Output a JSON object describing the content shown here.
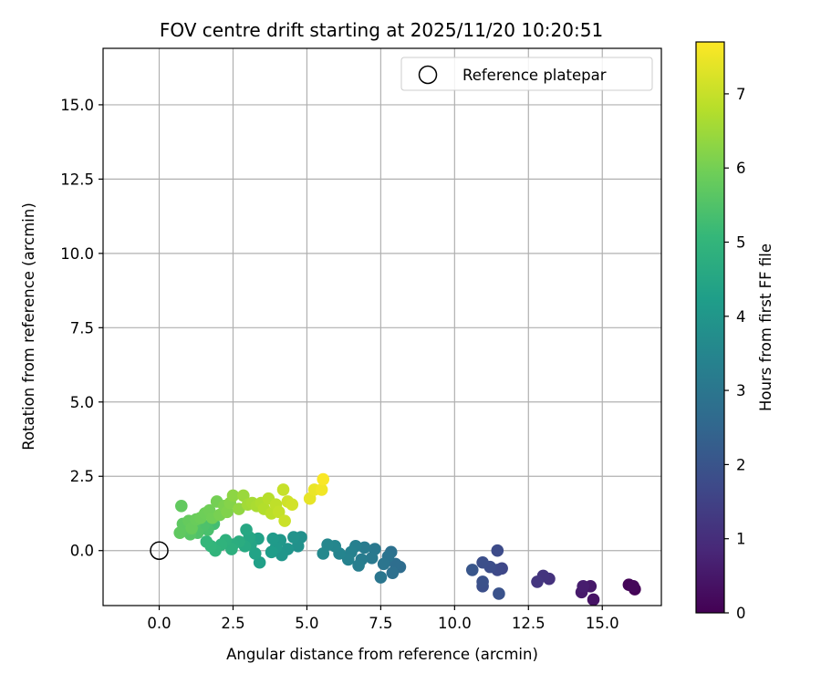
{
  "chart_data": {
    "type": "scatter",
    "title": "FOV centre drift starting at 2025/11/20 10:20:51",
    "xlabel": "Angular distance from reference (arcmin)",
    "ylabel": "Rotation from reference (arcmin)",
    "xlim": [
      -1.9,
      17.0
    ],
    "ylim": [
      -1.85,
      16.9
    ],
    "x_ticks": [
      0.0,
      2.5,
      5.0,
      7.5,
      10.0,
      12.5,
      15.0
    ],
    "x_tick_labels": [
      "0.0",
      "2.5",
      "5.0",
      "7.5",
      "10.0",
      "12.5",
      "15.0"
    ],
    "y_ticks": [
      0.0,
      2.5,
      5.0,
      7.5,
      10.0,
      12.5,
      15.0
    ],
    "y_tick_labels": [
      "0.0",
      "2.5",
      "5.0",
      "7.5",
      "10.0",
      "12.5",
      "15.0"
    ],
    "grid": true,
    "legend": {
      "location": "upper-right",
      "entries": [
        "Reference platepar"
      ]
    },
    "colorbar": {
      "label": "Hours from first FF file",
      "range": [
        0,
        7.7
      ],
      "ticks": [
        0,
        1,
        2,
        3,
        4,
        5,
        6,
        7
      ],
      "tick_labels": [
        "0",
        "1",
        "2",
        "3",
        "4",
        "5",
        "6",
        "7"
      ],
      "colormap": "viridis"
    },
    "reference_point": {
      "x": 0.0,
      "y": 0.0,
      "label": "Reference platepar"
    },
    "series": [
      {
        "name": "FOV centre",
        "points": [
          {
            "x": 16.1,
            "y": -1.3,
            "t": 0.05
          },
          {
            "x": 15.9,
            "y": -1.15,
            "t": 0.1
          },
          {
            "x": 16.05,
            "y": -1.2,
            "t": 0.15
          },
          {
            "x": 14.7,
            "y": -1.65,
            "t": 0.4
          },
          {
            "x": 14.6,
            "y": -1.2,
            "t": 0.5
          },
          {
            "x": 14.3,
            "y": -1.4,
            "t": 0.55
          },
          {
            "x": 14.35,
            "y": -1.2,
            "t": 0.6
          },
          {
            "x": 13.2,
            "y": -0.95,
            "t": 1.1
          },
          {
            "x": 13.0,
            "y": -0.85,
            "t": 1.15
          },
          {
            "x": 12.8,
            "y": -1.05,
            "t": 1.2
          },
          {
            "x": 11.6,
            "y": -0.6,
            "t": 1.65
          },
          {
            "x": 11.45,
            "y": -0.65,
            "t": 1.7
          },
          {
            "x": 11.45,
            "y": 0.0,
            "t": 1.75
          },
          {
            "x": 11.2,
            "y": -0.55,
            "t": 1.8
          },
          {
            "x": 10.95,
            "y": -0.4,
            "t": 1.85
          },
          {
            "x": 10.95,
            "y": -1.2,
            "t": 1.85
          },
          {
            "x": 10.95,
            "y": -1.05,
            "t": 1.9
          },
          {
            "x": 11.5,
            "y": -1.45,
            "t": 1.95
          },
          {
            "x": 10.6,
            "y": -0.65,
            "t": 2.05
          },
          {
            "x": 8.15,
            "y": -0.55,
            "t": 2.7
          },
          {
            "x": 8.0,
            "y": -0.45,
            "t": 2.75
          },
          {
            "x": 7.9,
            "y": -0.75,
            "t": 2.8
          },
          {
            "x": 7.85,
            "y": -0.05,
            "t": 2.85
          },
          {
            "x": 7.75,
            "y": -0.2,
            "t": 2.9
          },
          {
            "x": 7.6,
            "y": -0.45,
            "t": 2.95
          },
          {
            "x": 7.5,
            "y": -0.9,
            "t": 3.0
          },
          {
            "x": 7.3,
            "y": 0.05,
            "t": 3.05
          },
          {
            "x": 7.2,
            "y": -0.25,
            "t": 3.1
          },
          {
            "x": 6.95,
            "y": 0.1,
            "t": 3.15
          },
          {
            "x": 6.85,
            "y": -0.3,
            "t": 3.2
          },
          {
            "x": 6.75,
            "y": -0.5,
            "t": 3.25
          },
          {
            "x": 6.65,
            "y": 0.15,
            "t": 3.3
          },
          {
            "x": 6.5,
            "y": -0.05,
            "t": 3.35
          },
          {
            "x": 6.4,
            "y": -0.3,
            "t": 3.4
          },
          {
            "x": 6.1,
            "y": -0.1,
            "t": 3.45
          },
          {
            "x": 5.95,
            "y": 0.15,
            "t": 3.5
          },
          {
            "x": 5.7,
            "y": 0.2,
            "t": 3.55
          },
          {
            "x": 5.55,
            "y": -0.1,
            "t": 3.6
          },
          {
            "x": 4.8,
            "y": 0.45,
            "t": 3.8
          },
          {
            "x": 4.7,
            "y": 0.15,
            "t": 3.85
          },
          {
            "x": 4.55,
            "y": 0.45,
            "t": 3.9
          },
          {
            "x": 4.35,
            "y": 0.05,
            "t": 3.95
          },
          {
            "x": 4.15,
            "y": -0.15,
            "t": 4.0
          },
          {
            "x": 4.1,
            "y": 0.35,
            "t": 4.05
          },
          {
            "x": 3.95,
            "y": 0.1,
            "t": 4.1
          },
          {
            "x": 3.85,
            "y": 0.4,
            "t": 4.15
          },
          {
            "x": 3.8,
            "y": -0.05,
            "t": 4.2
          },
          {
            "x": 3.4,
            "y": -0.4,
            "t": 4.3
          },
          {
            "x": 3.35,
            "y": 0.4,
            "t": 4.35
          },
          {
            "x": 3.25,
            "y": -0.1,
            "t": 4.4
          },
          {
            "x": 3.1,
            "y": 0.2,
            "t": 4.45
          },
          {
            "x": 3.05,
            "y": 0.45,
            "t": 4.5
          },
          {
            "x": 2.95,
            "y": 0.7,
            "t": 4.55
          },
          {
            "x": 2.9,
            "y": 0.15,
            "t": 4.6
          },
          {
            "x": 2.7,
            "y": 0.3,
            "t": 4.7
          },
          {
            "x": 2.5,
            "y": 0.2,
            "t": 4.75
          },
          {
            "x": 2.45,
            "y": 0.05,
            "t": 4.8
          },
          {
            "x": 2.25,
            "y": 0.35,
            "t": 4.85
          },
          {
            "x": 2.1,
            "y": 0.2,
            "t": 4.9
          },
          {
            "x": 1.9,
            "y": 0.0,
            "t": 4.95
          },
          {
            "x": 1.75,
            "y": 0.15,
            "t": 5.0
          },
          {
            "x": 1.6,
            "y": 0.3,
            "t": 5.05
          },
          {
            "x": 1.85,
            "y": 0.9,
            "t": 5.3
          },
          {
            "x": 1.65,
            "y": 0.7,
            "t": 5.4
          },
          {
            "x": 1.5,
            "y": 0.85,
            "t": 5.45
          },
          {
            "x": 1.3,
            "y": 0.6,
            "t": 5.5
          },
          {
            "x": 1.2,
            "y": 0.9,
            "t": 5.55
          },
          {
            "x": 1.05,
            "y": 0.55,
            "t": 5.6
          },
          {
            "x": 0.9,
            "y": 0.7,
            "t": 5.65
          },
          {
            "x": 0.8,
            "y": 0.9,
            "t": 5.7
          },
          {
            "x": 0.7,
            "y": 0.6,
            "t": 5.72
          },
          {
            "x": 0.75,
            "y": 1.5,
            "t": 5.75
          },
          {
            "x": 1.0,
            "y": 1.0,
            "t": 5.8
          },
          {
            "x": 1.1,
            "y": 0.75,
            "t": 5.82
          },
          {
            "x": 1.25,
            "y": 1.05,
            "t": 5.85
          },
          {
            "x": 1.4,
            "y": 1.1,
            "t": 5.9
          },
          {
            "x": 1.55,
            "y": 1.25,
            "t": 5.92
          },
          {
            "x": 1.7,
            "y": 1.35,
            "t": 5.95
          },
          {
            "x": 1.8,
            "y": 1.1,
            "t": 5.97
          },
          {
            "x": 1.95,
            "y": 1.65,
            "t": 6.0
          },
          {
            "x": 2.05,
            "y": 1.2,
            "t": 6.05
          },
          {
            "x": 2.2,
            "y": 1.5,
            "t": 6.1
          },
          {
            "x": 2.3,
            "y": 1.3,
            "t": 6.15
          },
          {
            "x": 2.4,
            "y": 1.6,
            "t": 6.2
          },
          {
            "x": 2.5,
            "y": 1.85,
            "t": 6.3
          },
          {
            "x": 2.7,
            "y": 1.4,
            "t": 6.35
          },
          {
            "x": 2.85,
            "y": 1.85,
            "t": 6.45
          },
          {
            "x": 3.0,
            "y": 1.55,
            "t": 6.55
          },
          {
            "x": 3.15,
            "y": 1.6,
            "t": 6.6
          },
          {
            "x": 3.3,
            "y": 1.5,
            "t": 6.65
          },
          {
            "x": 3.45,
            "y": 1.6,
            "t": 6.7
          },
          {
            "x": 3.55,
            "y": 1.4,
            "t": 6.75
          },
          {
            "x": 3.7,
            "y": 1.75,
            "t": 6.8
          },
          {
            "x": 3.8,
            "y": 1.25,
            "t": 6.85
          },
          {
            "x": 3.95,
            "y": 1.55,
            "t": 6.9
          },
          {
            "x": 4.05,
            "y": 1.3,
            "t": 6.95
          },
          {
            "x": 4.2,
            "y": 2.05,
            "t": 7.0
          },
          {
            "x": 4.25,
            "y": 1.0,
            "t": 7.05
          },
          {
            "x": 4.35,
            "y": 1.65,
            "t": 7.1
          },
          {
            "x": 4.5,
            "y": 1.55,
            "t": 7.15
          },
          {
            "x": 5.1,
            "y": 1.75,
            "t": 7.4
          },
          {
            "x": 5.25,
            "y": 2.05,
            "t": 7.45
          },
          {
            "x": 5.5,
            "y": 2.05,
            "t": 7.55
          },
          {
            "x": 5.55,
            "y": 2.4,
            "t": 7.65
          }
        ]
      }
    ]
  }
}
